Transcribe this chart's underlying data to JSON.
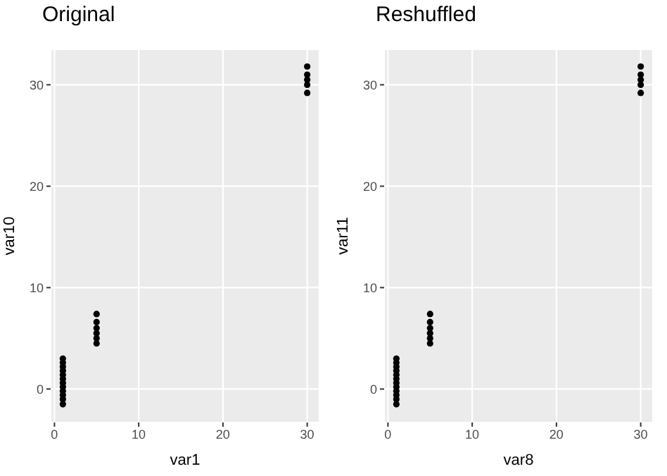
{
  "chart_data": [
    {
      "type": "scatter",
      "title": "Original",
      "xlabel": "var1",
      "ylabel": "var10",
      "xlim": [
        -0.45,
        31.45
      ],
      "ylim": [
        -3.3,
        33.5
      ],
      "xticks": [
        0,
        10,
        20,
        30
      ],
      "yticks": [
        0,
        10,
        20,
        30
      ],
      "grid": true,
      "marker": "circle",
      "series": [
        {
          "color": "#000000",
          "x": [
            1,
            1,
            1,
            1,
            1,
            1,
            1,
            1,
            1,
            1,
            1,
            1,
            5,
            5,
            5,
            5,
            5,
            5,
            30,
            30,
            30,
            30,
            30
          ],
          "values": [
            3.0,
            2.6,
            2.2,
            1.8,
            1.4,
            1.0,
            0.6,
            0.2,
            -0.2,
            -0.6,
            -1.0,
            -1.5,
            7.4,
            6.6,
            6.0,
            5.5,
            5.0,
            4.5,
            31.8,
            31.0,
            30.5,
            30.0,
            29.2
          ]
        }
      ]
    },
    {
      "type": "scatter",
      "title": "Reshuffled",
      "xlabel": "var8",
      "ylabel": "var11",
      "xlim": [
        -0.45,
        31.45
      ],
      "ylim": [
        -3.3,
        33.5
      ],
      "xticks": [
        0,
        10,
        20,
        30
      ],
      "yticks": [
        0,
        10,
        20,
        30
      ],
      "grid": true,
      "marker": "circle",
      "series": [
        {
          "color": "#000000",
          "x": [
            1,
            1,
            1,
            1,
            1,
            1,
            1,
            1,
            1,
            1,
            1,
            1,
            5,
            5,
            5,
            5,
            5,
            5,
            30,
            30,
            30,
            30,
            30
          ],
          "values": [
            3.0,
            2.6,
            2.2,
            1.8,
            1.4,
            1.0,
            0.6,
            0.2,
            -0.2,
            -0.6,
            -1.0,
            -1.5,
            7.4,
            6.6,
            6.0,
            5.5,
            5.0,
            4.5,
            31.8,
            31.0,
            30.5,
            30.0,
            29.2
          ]
        }
      ]
    }
  ]
}
